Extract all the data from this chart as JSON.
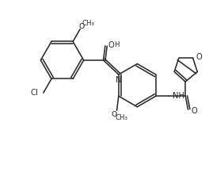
{
  "bg_color": "#ffffff",
  "line_color": "#2a2a2a",
  "line_width": 1.15,
  "font_size": 7.2,
  "xlim": [
    -1.65,
    2.7
  ],
  "ylim": [
    -2.05,
    1.85
  ]
}
